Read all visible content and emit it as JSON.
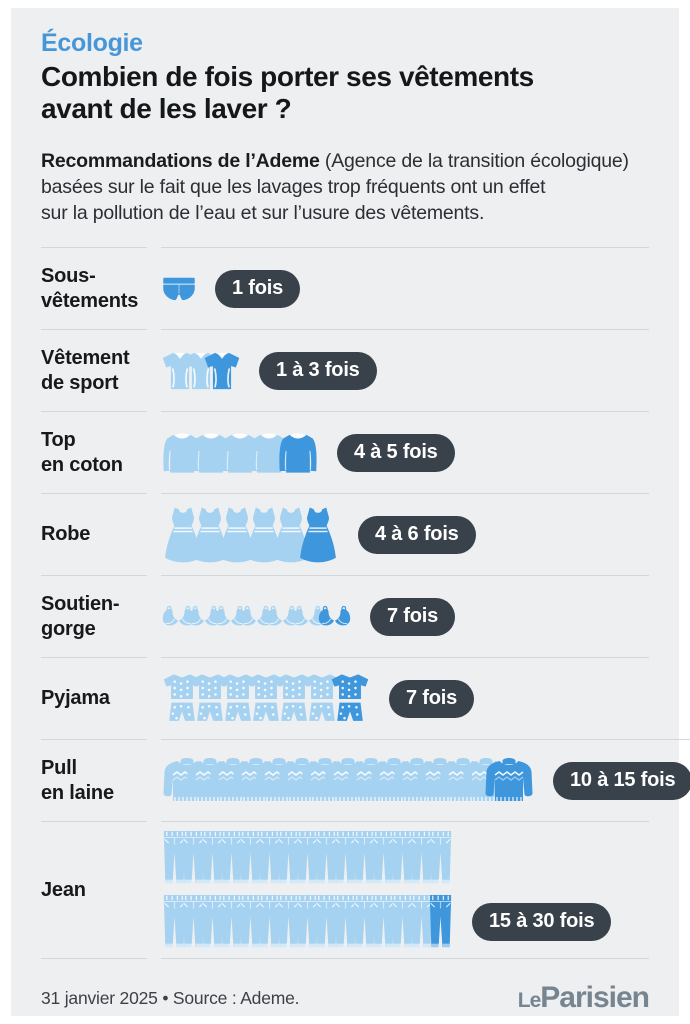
{
  "colors": {
    "card_bg": "#edeff1",
    "kicker_blue": "#4796d8",
    "icon_light_blue": "#a6d2f1",
    "icon_accent_blue": "#3e96dc",
    "badge_bg": "#39424b",
    "badge_text": "#ffffff",
    "divider": "#d3d7da",
    "title_text": "#15181b",
    "logo_gray": "#76858f"
  },
  "header": {
    "kicker": "Écologie",
    "title_line1": "Combien de fois porter ses vêtements",
    "title_line2": "avant de les laver ?"
  },
  "intro": {
    "bold": "Recommandations de l’Ademe",
    "line1_rest": " (Agence de la transition écologique)",
    "line2": "basées sur le fait que les lavages trop fréquents ont un effet",
    "line3": "sur la pollution de l’eau et sur l’usure des vêtements."
  },
  "rows": [
    {
      "label_lines": [
        "Sous-",
        "vêtements"
      ],
      "icon": "underwear",
      "lines": [
        1
      ],
      "badge": "1 fois"
    },
    {
      "label_lines": [
        "Vêtement",
        "de sport"
      ],
      "icon": "sport-shirt",
      "lines": [
        3
      ],
      "badge": "1 à 3 fois"
    },
    {
      "label_lines": [
        "Top",
        "en coton"
      ],
      "icon": "cotton-top",
      "lines": [
        5
      ],
      "badge": "4 à 5 fois"
    },
    {
      "label_lines": [
        "Robe"
      ],
      "icon": "dress",
      "lines": [
        6
      ],
      "badge": "4 à 6 fois"
    },
    {
      "label_lines": [
        "Soutien-",
        "gorge"
      ],
      "icon": "bra",
      "lines": [
        7
      ],
      "badge": "7 fois"
    },
    {
      "label_lines": [
        "Pyjama"
      ],
      "icon": "pyjama",
      "lines": [
        7
      ],
      "badge": "7 fois"
    },
    {
      "label_lines": [
        "Pull",
        "en laine"
      ],
      "icon": "wool-sweater",
      "lines": [
        15
      ],
      "badge": "10 à 15 fois"
    },
    {
      "label_lines": [
        "Jean"
      ],
      "icon": "jeans",
      "lines": [
        15,
        15
      ],
      "badge": "15 à 30 fois"
    }
  ],
  "footer": {
    "date_source": "31 janvier 2025 • Source : Ademe.",
    "logo_le": "Le",
    "logo_main": "Parisien"
  },
  "chart_data": {
    "type": "bar",
    "subtype": "pictogram",
    "title": "Combien de fois porter ses vêtements avant de les laver ?",
    "kicker": "Écologie",
    "note": "Recommandations de l’Ademe (Agence de la transition écologique) basées sur le fait que les lavages trop fréquents ont un effet sur la pollution de l’eau et sur l’usure des vêtements.",
    "categories": [
      "Sous-vêtements",
      "Vêtement de sport",
      "Top en coton",
      "Robe",
      "Soutien-gorge",
      "Pyjama",
      "Pull en laine",
      "Jean"
    ],
    "values": [
      1,
      3,
      5,
      6,
      7,
      7,
      15,
      30
    ],
    "value_labels": [
      "1 fois",
      "1 à 3 fois",
      "4 à 5 fois",
      "4 à 6 fois",
      "7 fois",
      "7 fois",
      "10 à 15 fois",
      "15 à 30 fois"
    ],
    "unit": "fois",
    "source": "Ademe",
    "date": "31 janvier 2025",
    "legend_position": "none",
    "grid": false
  }
}
